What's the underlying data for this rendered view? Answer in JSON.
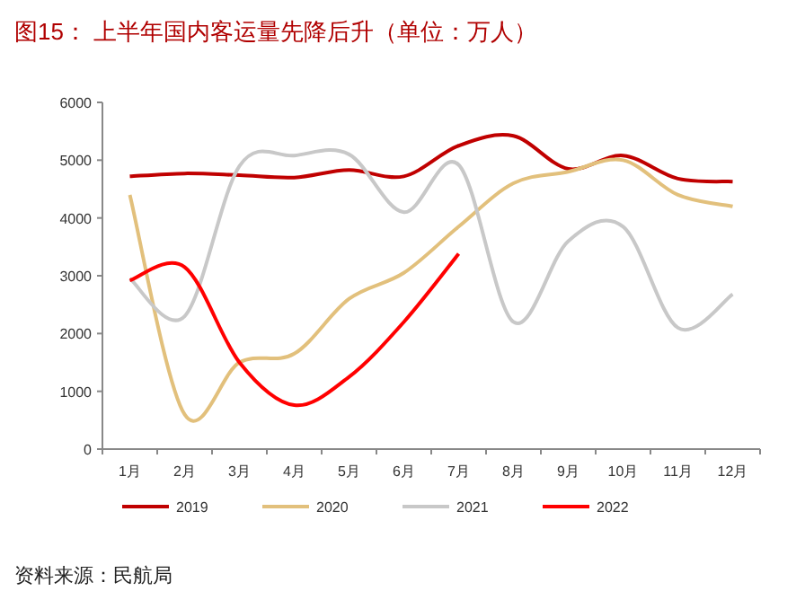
{
  "chart_data": {
    "type": "line",
    "title": "图15：  上半年国内客运量先降后升（单位：万人）",
    "categories": [
      "1月",
      "2月",
      "3月",
      "4月",
      "5月",
      "6月",
      "7月",
      "8月",
      "9月",
      "10月",
      "11月",
      "12月"
    ],
    "series": [
      {
        "name": "2019",
        "color": "#c00000",
        "values": [
          4720,
          4770,
          4740,
          4700,
          4830,
          4720,
          5250,
          5420,
          4850,
          5080,
          4680,
          4630
        ]
      },
      {
        "name": "2020",
        "color": "#e2c07c",
        "values": [
          4400,
          600,
          1500,
          1650,
          2600,
          3050,
          3850,
          4600,
          4800,
          5000,
          4400,
          4200
        ]
      },
      {
        "name": "2021",
        "color": "#c8c8c8",
        "values": [
          2950,
          2300,
          4900,
          5080,
          5100,
          4100,
          4920,
          2200,
          3600,
          3850,
          2100,
          2680
        ]
      },
      {
        "name": "2022",
        "color": "#ff0000",
        "values": [
          2920,
          3150,
          1500,
          760,
          1250,
          2200,
          3380,
          null,
          null,
          null,
          null,
          null
        ]
      }
    ],
    "ylim": [
      0,
      6000
    ],
    "yticks": [
      0,
      1000,
      2000,
      3000,
      4000,
      5000,
      6000
    ],
    "legend": "bottom",
    "annotations": [
      "资料来源：民航局"
    ]
  }
}
